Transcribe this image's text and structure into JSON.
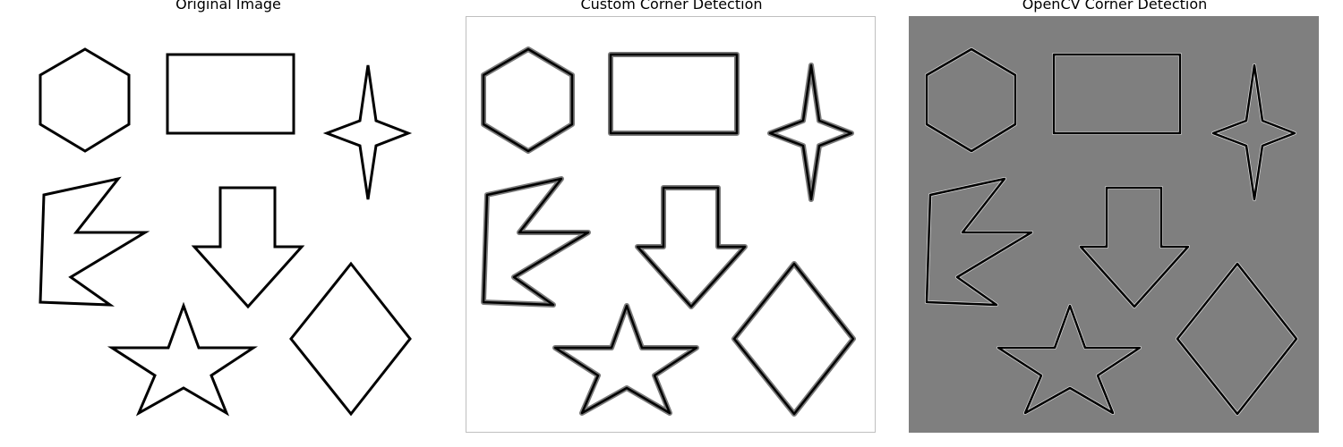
{
  "figure": {
    "panels": [
      {
        "title": "Original Image",
        "style": "original"
      },
      {
        "title": "Custom Corner Detection",
        "style": "custom"
      },
      {
        "title": "OpenCV Corner Detection",
        "style": "opencv"
      }
    ],
    "colors": {
      "outline": "#000000",
      "white_background": "#ffffff",
      "opencv_background": "#7f7f7f",
      "custom_halo": "#7a7a7a",
      "frame": "#bfbfbf"
    }
  }
}
